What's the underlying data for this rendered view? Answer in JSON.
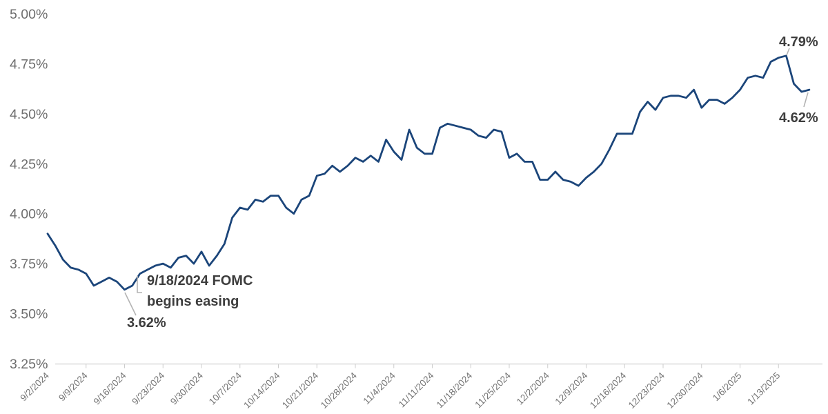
{
  "chart_data": {
    "type": "line",
    "title": "",
    "xlabel": "",
    "ylabel": "",
    "ylim": [
      3.25,
      5.0
    ],
    "grid": false,
    "legend": "none",
    "y_ticks": [
      {
        "label": "5.00%",
        "value": 5.0
      },
      {
        "label": "4.75%",
        "value": 4.75
      },
      {
        "label": "4.50%",
        "value": 4.5
      },
      {
        "label": "4.25%",
        "value": 4.25
      },
      {
        "label": "4.00%",
        "value": 4.0
      },
      {
        "label": "3.75%",
        "value": 3.75
      },
      {
        "label": "3.50%",
        "value": 3.5
      },
      {
        "label": "3.25%",
        "value": 3.25
      }
    ],
    "x_ticks": [
      "9/2/2024",
      "9/9/2024",
      "9/16/2024",
      "9/23/2024",
      "9/30/2024",
      "10/7/2024",
      "10/14/2024",
      "10/21/2024",
      "10/28/2024",
      "11/4/2024",
      "11/11/2024",
      "11/18/2024",
      "11/25/2024",
      "12/2/2024",
      "12/9/2024",
      "12/16/2024",
      "12/23/2024",
      "12/30/2024",
      "1/6/2025",
      "1/13/2025"
    ],
    "x": [
      "9/2/2024",
      "9/3/2024",
      "9/4/2024",
      "9/5/2024",
      "9/6/2024",
      "9/9/2024",
      "9/10/2024",
      "9/11/2024",
      "9/12/2024",
      "9/13/2024",
      "9/16/2024",
      "9/17/2024",
      "9/18/2024",
      "9/19/2024",
      "9/20/2024",
      "9/23/2024",
      "9/24/2024",
      "9/25/2024",
      "9/26/2024",
      "9/27/2024",
      "9/30/2024",
      "10/1/2024",
      "10/2/2024",
      "10/3/2024",
      "10/4/2024",
      "10/7/2024",
      "10/8/2024",
      "10/9/2024",
      "10/10/2024",
      "10/11/2024",
      "10/14/2024",
      "10/15/2024",
      "10/16/2024",
      "10/17/2024",
      "10/18/2024",
      "10/21/2024",
      "10/22/2024",
      "10/23/2024",
      "10/24/2024",
      "10/25/2024",
      "10/28/2024",
      "10/29/2024",
      "10/30/2024",
      "10/31/2024",
      "11/1/2024",
      "11/4/2024",
      "11/5/2024",
      "11/6/2024",
      "11/7/2024",
      "11/8/2024",
      "11/11/2024",
      "11/12/2024",
      "11/13/2024",
      "11/14/2024",
      "11/15/2024",
      "11/18/2024",
      "11/19/2024",
      "11/20/2024",
      "11/21/2024",
      "11/22/2024",
      "11/25/2024",
      "11/26/2024",
      "11/27/2024",
      "11/28/2024",
      "11/29/2024",
      "12/2/2024",
      "12/3/2024",
      "12/4/2024",
      "12/5/2024",
      "12/6/2024",
      "12/9/2024",
      "12/10/2024",
      "12/11/2024",
      "12/12/2024",
      "12/13/2024",
      "12/16/2024",
      "12/17/2024",
      "12/18/2024",
      "12/19/2024",
      "12/20/2024",
      "12/23/2024",
      "12/24/2024",
      "12/25/2024",
      "12/26/2024",
      "12/27/2024",
      "12/30/2024",
      "12/31/2024",
      "1/1/2025",
      "1/2/2025",
      "1/3/2025",
      "1/6/2025",
      "1/7/2025",
      "1/8/2025",
      "1/9/2025",
      "1/10/2025",
      "1/13/2025",
      "1/14/2025",
      "1/15/2025",
      "1/16/2025",
      "1/17/2025"
    ],
    "values": [
      3.9,
      3.84,
      3.77,
      3.73,
      3.72,
      3.7,
      3.64,
      3.66,
      3.68,
      3.66,
      3.62,
      3.64,
      3.7,
      3.72,
      3.74,
      3.75,
      3.73,
      3.78,
      3.79,
      3.75,
      3.81,
      3.74,
      3.79,
      3.85,
      3.98,
      4.03,
      4.02,
      4.07,
      4.06,
      4.09,
      4.09,
      4.03,
      4.0,
      4.07,
      4.09,
      4.19,
      4.2,
      4.24,
      4.21,
      4.24,
      4.28,
      4.26,
      4.29,
      4.26,
      4.37,
      4.31,
      4.27,
      4.42,
      4.33,
      4.3,
      4.3,
      4.43,
      4.45,
      4.44,
      4.43,
      4.42,
      4.39,
      4.38,
      4.42,
      4.41,
      4.28,
      4.3,
      4.26,
      4.26,
      4.17,
      4.17,
      4.21,
      4.17,
      4.16,
      4.14,
      4.18,
      4.21,
      4.25,
      4.32,
      4.4,
      4.4,
      4.4,
      4.51,
      4.56,
      4.52,
      4.58,
      4.59,
      4.59,
      4.58,
      4.62,
      4.53,
      4.57,
      4.57,
      4.55,
      4.58,
      4.62,
      4.68,
      4.69,
      4.68,
      4.76,
      4.78,
      4.79,
      4.65,
      4.61,
      4.62
    ],
    "annotations": [
      {
        "lines": [
          "9/18/2024 FOMC",
          "begins easing"
        ],
        "anchor_x": "9/18/2024"
      },
      {
        "text": "3.62%",
        "anchor_x": "9/16/2024",
        "anchor_value": 3.62
      },
      {
        "text": "4.79%",
        "anchor_x": "1/14/2025",
        "anchor_value": 4.79
      },
      {
        "text": "4.62%",
        "anchor_x": "1/17/2025",
        "anchor_value": 4.62
      }
    ],
    "colors": {
      "line": "#1b457a",
      "annotation_text": "#3d3d3d",
      "leader_line": "#b3b3b3",
      "axis_line": "#d9d9d9",
      "tick_label": "#757575",
      "y_label": "#6e6e6e",
      "background": "#ffffff"
    }
  }
}
